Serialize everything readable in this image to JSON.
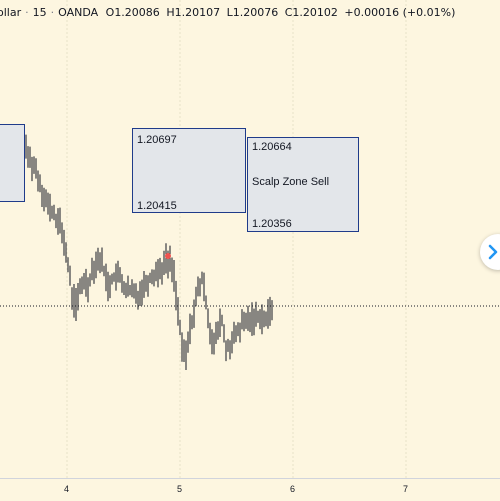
{
  "header": {
    "symbol_fragment": "ollar",
    "interval": "15",
    "broker": "OANDA",
    "open_label": "O",
    "open": "1.20086",
    "high_label": "H",
    "high": "1.20107",
    "low_label": "L",
    "low": "1.20076",
    "close_label": "C",
    "close": "1.20102",
    "change": "+0.00016 (+0.01%)"
  },
  "x_axis": {
    "ticks": [
      "4",
      "5",
      "6",
      "7"
    ]
  },
  "zones": {
    "left": {
      "top_price": "1.20697",
      "bottom_price": "1.20415"
    },
    "right": {
      "top_price": "1.20664",
      "label": "Scalp Zone Sell",
      "bottom_price": "1.20356"
    }
  },
  "colors": {
    "background": "#fdf6e0",
    "candle": "#131722",
    "zone_fill": "#e3e6ea",
    "zone_border": "#1f3b8a",
    "marker": "#ef5350",
    "scroll_arrow": "#2196f3"
  },
  "icons": {
    "scroll_button": "chevron-right-icon"
  }
}
